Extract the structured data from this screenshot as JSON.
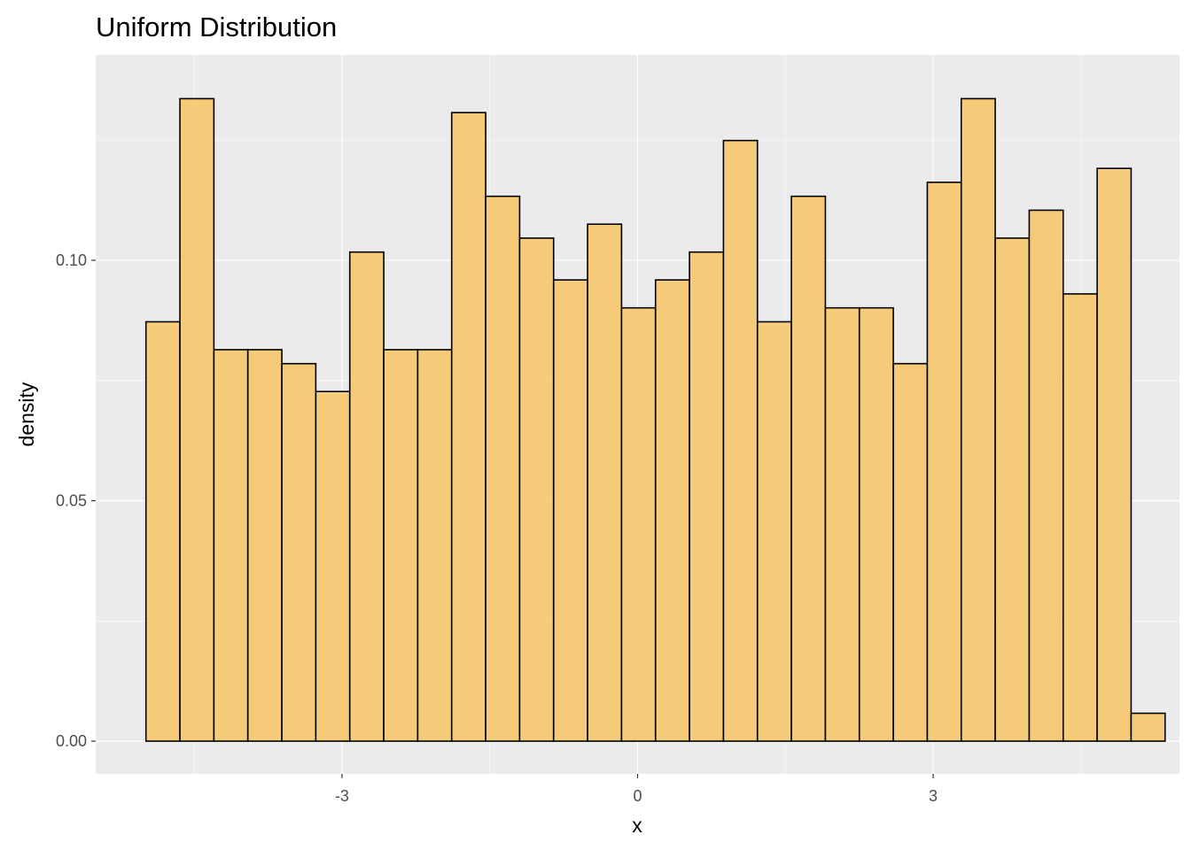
{
  "chart_data": {
    "type": "bar",
    "title": "Uniform Distribution",
    "xlabel": "x",
    "ylabel": "density",
    "x_ticks": [
      {
        "value": -3,
        "label": "-3"
      },
      {
        "value": 0,
        "label": "0"
      },
      {
        "value": 3,
        "label": "3"
      }
    ],
    "y_ticks": [
      {
        "value": 0.0,
        "label": "0.00"
      },
      {
        "value": 0.05,
        "label": "0.05"
      },
      {
        "value": 0.1,
        "label": "0.10"
      }
    ],
    "xlim": [
      -5.5,
      5.5
    ],
    "ylim": [
      -0.0068,
      0.1427
    ],
    "bin_width": 0.3448,
    "bin_start": -4.99,
    "values": [
      0.0872,
      0.1336,
      0.0814,
      0.0814,
      0.0785,
      0.0727,
      0.1017,
      0.0814,
      0.0814,
      0.1307,
      0.1133,
      0.1046,
      0.0959,
      0.1075,
      0.0901,
      0.0959,
      0.1017,
      0.1249,
      0.0872,
      0.1133,
      0.0901,
      0.0901,
      0.0785,
      0.1162,
      0.1336,
      0.1046,
      0.1104,
      0.093,
      0.1191,
      0.0058
    ],
    "grid": true,
    "bar_fill": "#f5c870",
    "bar_stroke": "#000000",
    "panel_background": "#ebebeb",
    "grid_color": "#ffffff"
  }
}
